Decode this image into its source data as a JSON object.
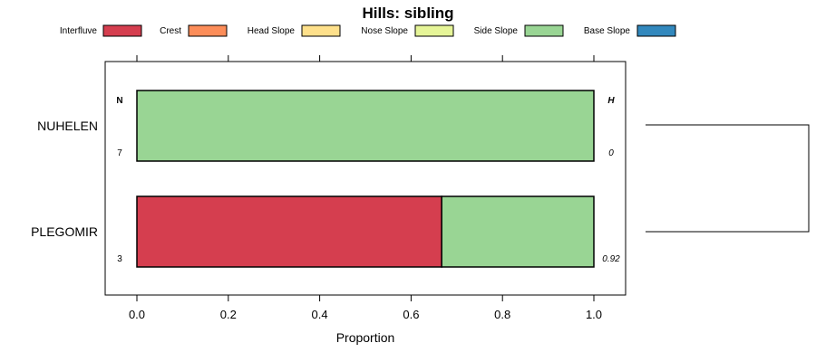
{
  "chart_data": {
    "type": "bar",
    "stacked": true,
    "orientation": "horizontal",
    "title": "Hills: sibling",
    "xlabel": "Proportion",
    "ylabel": "",
    "xlim": [
      0,
      1
    ],
    "xticks": [
      "0.0",
      "0.2",
      "0.4",
      "0.6",
      "0.8",
      "1.0"
    ],
    "categories": [
      "NUHELEN",
      "PLEGOMIR"
    ],
    "n_header": "N",
    "h_header": "H",
    "n_values": [
      "7",
      "3"
    ],
    "h_values": [
      "0",
      "0.92"
    ],
    "legend_position": "top",
    "series": [
      {
        "name": "Interfluve",
        "color": "#d53e4f",
        "values": [
          0,
          0.667
        ]
      },
      {
        "name": "Crest",
        "color": "#fc8d59",
        "values": [
          0,
          0
        ]
      },
      {
        "name": "Head Slope",
        "color": "#fee08b",
        "values": [
          0,
          0
        ]
      },
      {
        "name": "Nose Slope",
        "color": "#e6f598",
        "values": [
          0,
          0
        ]
      },
      {
        "name": "Side Slope",
        "color": "#99d594",
        "values": [
          1,
          0.333
        ]
      },
      {
        "name": "Base Slope",
        "color": "#3288bd",
        "values": [
          0,
          0
        ]
      }
    ],
    "dendrogram": true
  }
}
